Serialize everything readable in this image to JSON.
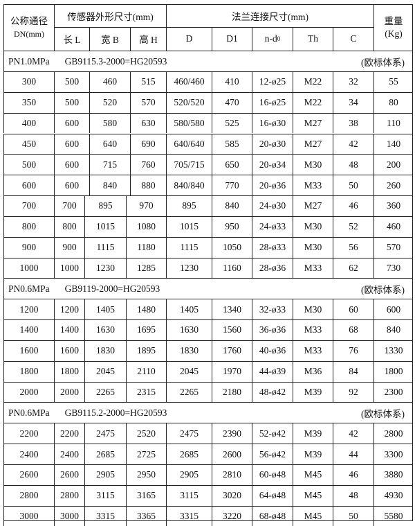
{
  "header": {
    "dn_label": "公称通径",
    "dn_unit": "DN(mm)",
    "sensor_group": "传感器外形尺寸(mm)",
    "flange_group": "法兰连接尺寸(mm)",
    "weight_label": "重量",
    "weight_unit": "(Kg)",
    "columns": [
      "长 L",
      "宽 B",
      "高 H",
      "D",
      "D1",
      "n-d",
      "Th",
      "C"
    ],
    "nd_sub": "0"
  },
  "sections": [
    {
      "pressure": "PN1.0MPa",
      "standard": "GB9115.3-2000=HG20593",
      "system": "(欧标体系)",
      "rows": [
        [
          "300",
          "500",
          "460",
          "515",
          "460/460",
          "410",
          "12-ø25",
          "M22",
          "32",
          "55"
        ],
        [
          "350",
          "500",
          "520",
          "570",
          "520/520",
          "470",
          "16-ø25",
          "M22",
          "34",
          "80"
        ],
        [
          "400",
          "600",
          "580",
          "630",
          "580/580",
          "525",
          "16-ø30",
          "M27",
          "38",
          "110"
        ],
        [
          "450",
          "600",
          "640",
          "690",
          "640/640",
          "585",
          "20-ø30",
          "M27",
          "42",
          "140"
        ],
        [
          "500",
          "600",
          "715",
          "760",
          "705/715",
          "650",
          "20-ø34",
          "M30",
          "48",
          "200"
        ],
        [
          "600",
          "600",
          "840",
          "880",
          "840/840",
          "770",
          "20-ø36",
          "M33",
          "50",
          "260"
        ],
        [
          "700",
          "700",
          "895",
          "970",
          "895",
          "840",
          "24-ø30",
          "M27",
          "46",
          "360"
        ],
        [
          "800",
          "800",
          "1015",
          "1080",
          "1015",
          "950",
          "24-ø33",
          "M30",
          "52",
          "460"
        ],
        [
          "900",
          "900",
          "1115",
          "1180",
          "1115",
          "1050",
          "28-ø33",
          "M30",
          "56",
          "570"
        ],
        [
          "1000",
          "1000",
          "1230",
          "1285",
          "1230",
          "1160",
          "28-ø36",
          "M33",
          "62",
          "730"
        ]
      ]
    },
    {
      "pressure": "PN0.6MPa",
      "standard": "GB9119-2000=HG20593",
      "system": "(欧标体系)",
      "rows": [
        [
          "1200",
          "1200",
          "1405",
          "1480",
          "1405",
          "1340",
          "32-ø33",
          "M30",
          "60",
          "600"
        ],
        [
          "1400",
          "1400",
          "1630",
          "1695",
          "1630",
          "1560",
          "36-ø36",
          "M33",
          "68",
          "840"
        ],
        [
          "1600",
          "1600",
          "1830",
          "1895",
          "1830",
          "1760",
          "40-ø36",
          "M33",
          "76",
          "1330"
        ],
        [
          "1800",
          "1800",
          "2045",
          "2110",
          "2045",
          "1970",
          "44-ø39",
          "M36",
          "84",
          "1800"
        ],
        [
          "2000",
          "2000",
          "2265",
          "2315",
          "2265",
          "2180",
          "48-ø42",
          "M39",
          "92",
          "2300"
        ]
      ]
    },
    {
      "pressure": "PN0.6MPa",
      "standard": "GB9115.2-2000=HG20593",
      "system": "(欧标体系)",
      "rows": [
        [
          "2200",
          "2200",
          "2475",
          "2520",
          "2475",
          "2390",
          "52-ø42",
          "M39",
          "42",
          "2800"
        ],
        [
          "2400",
          "2400",
          "2685",
          "2725",
          "2685",
          "2600",
          "56-ø42",
          "M39",
          "44",
          "3300"
        ],
        [
          "2600",
          "2600",
          "2905",
          "2950",
          "2905",
          "2810",
          "60-ø48",
          "M45",
          "46",
          "3880"
        ],
        [
          "2800",
          "2800",
          "3115",
          "3165",
          "3115",
          "3020",
          "64-ø48",
          "M45",
          "48",
          "4930"
        ],
        [
          "3000",
          "3000",
          "3315",
          "3365",
          "3315",
          "3220",
          "68-ø48",
          "M45",
          "50",
          "5580"
        ]
      ]
    }
  ]
}
